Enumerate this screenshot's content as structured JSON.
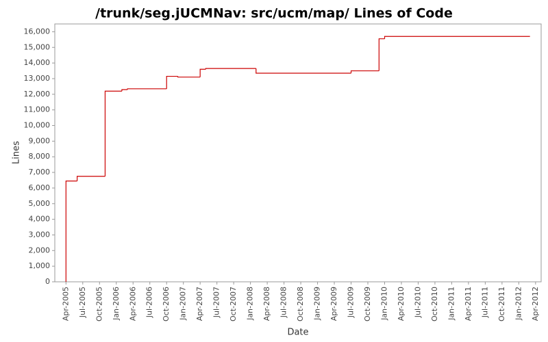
{
  "chart_data": {
    "type": "step-line",
    "title": "/trunk/seg.jUCMNav: src/ucm/map/ Lines of Code",
    "x_label": "Date",
    "y_label": "Lines",
    "x": [
      "2005-04",
      "2005-04",
      "2005-06",
      "2005-11",
      "2006-02",
      "2006-03",
      "2006-10",
      "2006-12",
      "2007-04",
      "2007-05",
      "2008-02",
      "2009-07",
      "2009-12",
      "2010-01",
      "2012-03"
    ],
    "series": [
      {
        "name": "Lines",
        "color": "#cc0000",
        "values": [
          0,
          6450,
          6750,
          12200,
          12300,
          12350,
          13150,
          13100,
          13600,
          13650,
          13350,
          13500,
          15550,
          15700,
          15700
        ]
      }
    ],
    "xlim": [
      "2005-02",
      "2012-05"
    ],
    "xticks": [
      {
        "value": "2005-04",
        "label": "Apr-2005"
      },
      {
        "value": "2005-07",
        "label": "Jul-2005"
      },
      {
        "value": "2005-10",
        "label": "Oct-2005"
      },
      {
        "value": "2006-01",
        "label": "Jan-2006"
      },
      {
        "value": "2006-04",
        "label": "Apr-2006"
      },
      {
        "value": "2006-07",
        "label": "Jul-2006"
      },
      {
        "value": "2006-10",
        "label": "Oct-2006"
      },
      {
        "value": "2007-01",
        "label": "Jan-2007"
      },
      {
        "value": "2007-04",
        "label": "Apr-2007"
      },
      {
        "value": "2007-07",
        "label": "Jul-2007"
      },
      {
        "value": "2007-10",
        "label": "Oct-2007"
      },
      {
        "value": "2008-01",
        "label": "Jan-2008"
      },
      {
        "value": "2008-04",
        "label": "Apr-2008"
      },
      {
        "value": "2008-07",
        "label": "Jul-2008"
      },
      {
        "value": "2008-10",
        "label": "Oct-2008"
      },
      {
        "value": "2009-01",
        "label": "Jan-2009"
      },
      {
        "value": "2009-04",
        "label": "Apr-2009"
      },
      {
        "value": "2009-07",
        "label": "Jul-2009"
      },
      {
        "value": "2009-10",
        "label": "Oct-2009"
      },
      {
        "value": "2010-01",
        "label": "Jan-2010"
      },
      {
        "value": "2010-04",
        "label": "Apr-2010"
      },
      {
        "value": "2010-07",
        "label": "Jul-2010"
      },
      {
        "value": "2010-10",
        "label": "Oct-2010"
      },
      {
        "value": "2011-01",
        "label": "Jan-2011"
      },
      {
        "value": "2011-04",
        "label": "Apr-2011"
      },
      {
        "value": "2011-07",
        "label": "Jul-2011"
      },
      {
        "value": "2011-10",
        "label": "Oct-2011"
      },
      {
        "value": "2012-01",
        "label": "Jan-2012"
      },
      {
        "value": "2012-04",
        "label": "Apr-2012"
      }
    ],
    "ylim": [
      0,
      16500
    ],
    "yticks": [
      0,
      {
        "value": 1000,
        "label": "1,000"
      },
      {
        "value": 2000,
        "label": "2,000"
      },
      {
        "value": 3000,
        "label": "3,000"
      },
      {
        "value": 4000,
        "label": "4,000"
      },
      {
        "value": 5000,
        "label": "5,000"
      },
      {
        "value": 6000,
        "label": "6,000"
      },
      {
        "value": 7000,
        "label": "7,000"
      },
      {
        "value": 8000,
        "label": "8,000"
      },
      {
        "value": 9000,
        "label": "9,000"
      },
      {
        "value": 10000,
        "label": "10,000"
      },
      {
        "value": 11000,
        "label": "11,000"
      },
      {
        "value": 12000,
        "label": "12,000"
      },
      {
        "value": 13000,
        "label": "13,000"
      },
      {
        "value": 14000,
        "label": "14,000"
      },
      {
        "value": 15000,
        "label": "15,000"
      },
      {
        "value": 16000,
        "label": "16,000"
      }
    ],
    "grid": false
  }
}
